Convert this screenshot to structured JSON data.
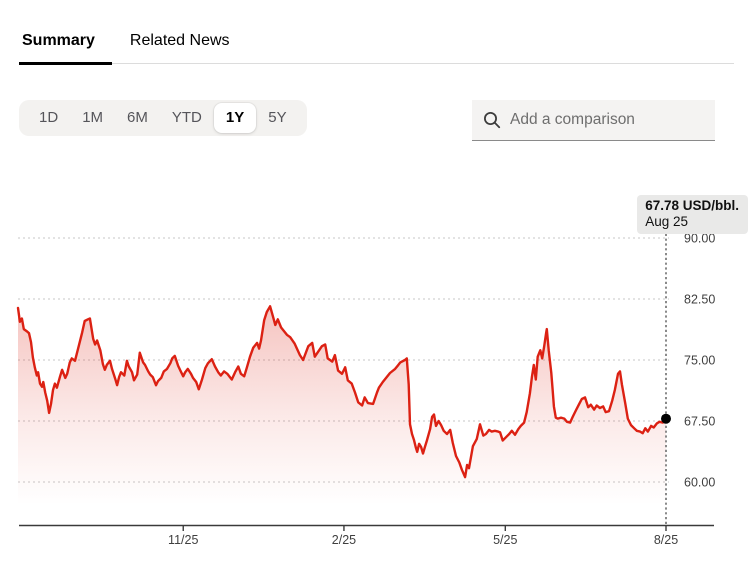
{
  "tabs": {
    "items": [
      {
        "label": "Summary",
        "active": true
      },
      {
        "label": "Related News",
        "active": false
      }
    ]
  },
  "range_selector": {
    "options": [
      "1D",
      "1M",
      "6M",
      "YTD",
      "1Y",
      "5Y"
    ],
    "selected": "1Y"
  },
  "comparison_search": {
    "placeholder": "Add a comparison",
    "icon": "search-icon"
  },
  "tooltip": {
    "price_label": "67.78 USD/bbl.",
    "date_label": "Aug 25"
  },
  "colors": {
    "line": "#dc2113",
    "fill_rgb": "219,35,21",
    "grid": "#d2d2d2",
    "axis": "#3a3a3a",
    "tick_label": "#3f3f3f",
    "cursor": "#8a8a8a",
    "dot": "#000000",
    "tooltip_bg": "#e9e9e8",
    "range_bg": "#f3f2f0",
    "search_bg": "#f4f3f2"
  },
  "chart_data": {
    "type": "area",
    "unit": "USD/bbl.",
    "period": "1Y",
    "last_value": 67.78,
    "last_date_label": "Aug 25",
    "ylim": [
      54.5,
      93.5
    ],
    "grid": true,
    "y_ticks": [
      90.0,
      82.5,
      75.0,
      67.5,
      60.0
    ],
    "y_tick_labels": [
      "90.00",
      "82.50",
      "75.00",
      "67.50",
      "60.00"
    ],
    "x_ticks": [
      {
        "f": 0.255,
        "label": "11/25"
      },
      {
        "f": 0.503,
        "label": "2/25"
      },
      {
        "f": 0.752,
        "label": "5/25"
      },
      {
        "f": 1.0,
        "label": "8/25"
      }
    ],
    "points": [
      [
        0.0,
        81.4
      ],
      [
        0.003,
        79.7
      ],
      [
        0.006,
        80.1
      ],
      [
        0.009,
        78.8
      ],
      [
        0.014,
        78.5
      ],
      [
        0.017,
        78.3
      ],
      [
        0.02,
        77.2
      ],
      [
        0.023,
        75.3
      ],
      [
        0.026,
        74.1
      ],
      [
        0.029,
        73.1
      ],
      [
        0.031,
        73.5
      ],
      [
        0.034,
        72.1
      ],
      [
        0.037,
        71.7
      ],
      [
        0.039,
        72.3
      ],
      [
        0.042,
        71.0
      ],
      [
        0.045,
        70.0
      ],
      [
        0.048,
        68.5
      ],
      [
        0.051,
        69.6
      ],
      [
        0.054,
        71.3
      ],
      [
        0.057,
        72.1
      ],
      [
        0.06,
        71.6
      ],
      [
        0.065,
        73.0
      ],
      [
        0.068,
        73.8
      ],
      [
        0.073,
        72.8
      ],
      [
        0.076,
        73.3
      ],
      [
        0.08,
        74.7
      ],
      [
        0.083,
        75.2
      ],
      [
        0.088,
        74.9
      ],
      [
        0.094,
        76.8
      ],
      [
        0.099,
        78.4
      ],
      [
        0.103,
        79.8
      ],
      [
        0.108,
        80.0
      ],
      [
        0.111,
        80.1
      ],
      [
        0.116,
        77.6
      ],
      [
        0.119,
        76.9
      ],
      [
        0.122,
        77.4
      ],
      [
        0.127,
        76.2
      ],
      [
        0.131,
        74.5
      ],
      [
        0.134,
        73.8
      ],
      [
        0.137,
        74.4
      ],
      [
        0.142,
        74.9
      ],
      [
        0.145,
        73.9
      ],
      [
        0.15,
        72.7
      ],
      [
        0.153,
        71.9
      ],
      [
        0.156,
        72.9
      ],
      [
        0.159,
        73.5
      ],
      [
        0.164,
        73.1
      ],
      [
        0.168,
        74.9
      ],
      [
        0.171,
        74.2
      ],
      [
        0.176,
        73.5
      ],
      [
        0.179,
        72.5
      ],
      [
        0.184,
        73.2
      ],
      [
        0.188,
        75.9
      ],
      [
        0.193,
        74.7
      ],
      [
        0.196,
        74.4
      ],
      [
        0.201,
        73.6
      ],
      [
        0.204,
        73.2
      ],
      [
        0.208,
        72.9
      ],
      [
        0.213,
        71.9
      ],
      [
        0.216,
        72.4
      ],
      [
        0.221,
        72.8
      ],
      [
        0.225,
        73.6
      ],
      [
        0.23,
        73.9
      ],
      [
        0.235,
        74.6
      ],
      [
        0.238,
        75.2
      ],
      [
        0.242,
        75.5
      ],
      [
        0.247,
        74.3
      ],
      [
        0.25,
        73.8
      ],
      [
        0.255,
        73.0
      ],
      [
        0.258,
        73.5
      ],
      [
        0.262,
        73.9
      ],
      [
        0.267,
        73.3
      ],
      [
        0.27,
        72.8
      ],
      [
        0.275,
        72.3
      ],
      [
        0.279,
        71.4
      ],
      [
        0.284,
        72.6
      ],
      [
        0.289,
        74.0
      ],
      [
        0.293,
        74.6
      ],
      [
        0.299,
        75.1
      ],
      [
        0.304,
        74.2
      ],
      [
        0.309,
        73.5
      ],
      [
        0.313,
        73.1
      ],
      [
        0.318,
        73.6
      ],
      [
        0.323,
        73.3
      ],
      [
        0.327,
        72.9
      ],
      [
        0.33,
        72.6
      ],
      [
        0.335,
        73.5
      ],
      [
        0.34,
        74.2
      ],
      [
        0.344,
        73.3
      ],
      [
        0.349,
        73.0
      ],
      [
        0.353,
        74.0
      ],
      [
        0.358,
        75.4
      ],
      [
        0.363,
        76.5
      ],
      [
        0.369,
        77.1
      ],
      [
        0.372,
        76.4
      ],
      [
        0.375,
        77.4
      ],
      [
        0.38,
        79.9
      ],
      [
        0.384,
        80.9
      ],
      [
        0.389,
        81.6
      ],
      [
        0.394,
        80.2
      ],
      [
        0.397,
        79.3
      ],
      [
        0.401,
        80.0
      ],
      [
        0.406,
        79.0
      ],
      [
        0.41,
        78.6
      ],
      [
        0.415,
        78.1
      ],
      [
        0.42,
        77.8
      ],
      [
        0.427,
        77.0
      ],
      [
        0.435,
        75.6
      ],
      [
        0.44,
        75.0
      ],
      [
        0.448,
        76.7
      ],
      [
        0.454,
        77.1
      ],
      [
        0.458,
        75.4
      ],
      [
        0.463,
        76.0
      ],
      [
        0.469,
        76.7
      ],
      [
        0.474,
        76.9
      ],
      [
        0.478,
        75.2
      ],
      [
        0.485,
        74.8
      ],
      [
        0.489,
        75.6
      ],
      [
        0.494,
        73.7
      ],
      [
        0.5,
        73.3
      ],
      [
        0.505,
        74.1
      ],
      [
        0.509,
        72.5
      ],
      [
        0.515,
        72.1
      ],
      [
        0.52,
        71.0
      ],
      [
        0.525,
        69.8
      ],
      [
        0.531,
        69.4
      ],
      [
        0.535,
        70.4
      ],
      [
        0.54,
        69.7
      ],
      [
        0.548,
        69.6
      ],
      [
        0.554,
        71.0
      ],
      [
        0.557,
        71.6
      ],
      [
        0.563,
        72.3
      ],
      [
        0.569,
        72.9
      ],
      [
        0.574,
        73.4
      ],
      [
        0.582,
        73.9
      ],
      [
        0.586,
        74.3
      ],
      [
        0.59,
        74.7
      ],
      [
        0.597,
        75.0
      ],
      [
        0.6,
        75.2
      ],
      [
        0.603,
        72.0
      ],
      [
        0.605,
        67.1
      ],
      [
        0.608,
        65.9
      ],
      [
        0.611,
        65.2
      ],
      [
        0.614,
        64.2
      ],
      [
        0.616,
        63.7
      ],
      [
        0.619,
        64.7
      ],
      [
        0.622,
        64.3
      ],
      [
        0.625,
        63.5
      ],
      [
        0.628,
        64.3
      ],
      [
        0.631,
        65.1
      ],
      [
        0.636,
        66.5
      ],
      [
        0.639,
        68.0
      ],
      [
        0.642,
        68.3
      ],
      [
        0.645,
        66.9
      ],
      [
        0.649,
        67.5
      ],
      [
        0.653,
        67.0
      ],
      [
        0.657,
        66.3
      ],
      [
        0.662,
        65.9
      ],
      [
        0.667,
        66.4
      ],
      [
        0.671,
        64.8
      ],
      [
        0.676,
        63.2
      ],
      [
        0.681,
        62.4
      ],
      [
        0.685,
        61.5
      ],
      [
        0.69,
        60.6
      ],
      [
        0.693,
        62.1
      ],
      [
        0.696,
        61.7
      ],
      [
        0.702,
        64.4
      ],
      [
        0.708,
        65.3
      ],
      [
        0.713,
        67.1
      ],
      [
        0.718,
        65.7
      ],
      [
        0.722,
        65.9
      ],
      [
        0.727,
        66.4
      ],
      [
        0.731,
        66.2
      ],
      [
        0.736,
        66.3
      ],
      [
        0.741,
        66.2
      ],
      [
        0.744,
        66.1
      ],
      [
        0.748,
        65.1
      ],
      [
        0.753,
        65.5
      ],
      [
        0.758,
        65.9
      ],
      [
        0.762,
        66.3
      ],
      [
        0.767,
        65.8
      ],
      [
        0.772,
        66.5
      ],
      [
        0.776,
        66.9
      ],
      [
        0.781,
        67.3
      ],
      [
        0.785,
        68.6
      ],
      [
        0.79,
        70.9
      ],
      [
        0.793,
        72.9
      ],
      [
        0.796,
        74.4
      ],
      [
        0.799,
        72.6
      ],
      [
        0.802,
        75.4
      ],
      [
        0.806,
        76.2
      ],
      [
        0.809,
        75.2
      ],
      [
        0.812,
        76.7
      ],
      [
        0.815,
        78.3
      ],
      [
        0.816,
        78.8
      ],
      [
        0.819,
        76.2
      ],
      [
        0.823,
        73.4
      ],
      [
        0.825,
        71.4
      ],
      [
        0.827,
        69.3
      ],
      [
        0.83,
        67.9
      ],
      [
        0.833,
        67.8
      ],
      [
        0.838,
        67.9
      ],
      [
        0.843,
        67.8
      ],
      [
        0.847,
        67.4
      ],
      [
        0.852,
        67.3
      ],
      [
        0.856,
        68.0
      ],
      [
        0.861,
        68.8
      ],
      [
        0.866,
        69.6
      ],
      [
        0.87,
        70.2
      ],
      [
        0.875,
        70.4
      ],
      [
        0.88,
        69.2
      ],
      [
        0.884,
        69.5
      ],
      [
        0.889,
        68.9
      ],
      [
        0.893,
        69.4
      ],
      [
        0.898,
        69.1
      ],
      [
        0.903,
        69.3
      ],
      [
        0.907,
        68.6
      ],
      [
        0.912,
        68.7
      ],
      [
        0.917,
        70.0
      ],
      [
        0.921,
        71.3
      ],
      [
        0.926,
        73.3
      ],
      [
        0.929,
        73.6
      ],
      [
        0.932,
        72.0
      ],
      [
        0.937,
        69.7
      ],
      [
        0.941,
        67.8
      ],
      [
        0.946,
        67.0
      ],
      [
        0.951,
        66.6
      ],
      [
        0.955,
        66.3
      ],
      [
        0.96,
        66.2
      ],
      [
        0.964,
        66.0
      ],
      [
        0.968,
        66.6
      ],
      [
        0.972,
        66.2
      ],
      [
        0.977,
        66.9
      ],
      [
        0.981,
        66.7
      ],
      [
        0.986,
        67.2
      ],
      [
        0.99,
        67.4
      ],
      [
        0.995,
        67.3
      ],
      [
        1.0,
        67.78
      ]
    ]
  }
}
